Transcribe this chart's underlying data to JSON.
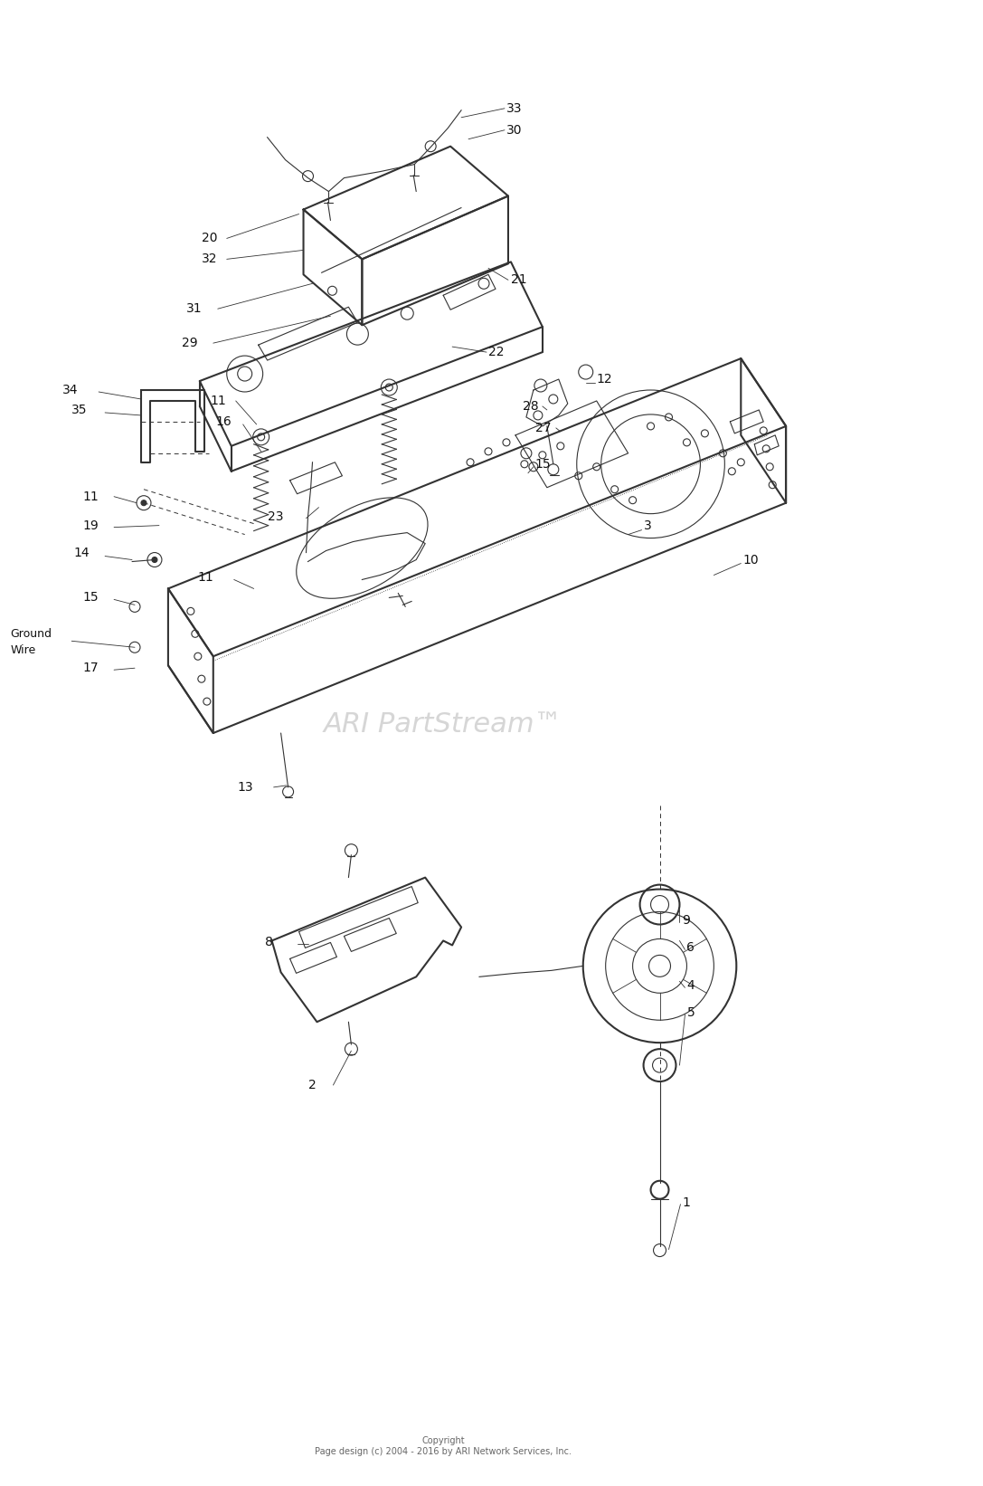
{
  "background_color": "#ffffff",
  "line_color": "#333333",
  "text_color": "#111111",
  "watermark_color": "#bbbbbb",
  "watermark_text": "ARI PartStream™",
  "copyright_text": "Copyright\nPage design (c) 2004 - 2016 by ARI Network Services, Inc.",
  "fig_width": 10.87,
  "fig_height": 16.42,
  "dpi": 100
}
